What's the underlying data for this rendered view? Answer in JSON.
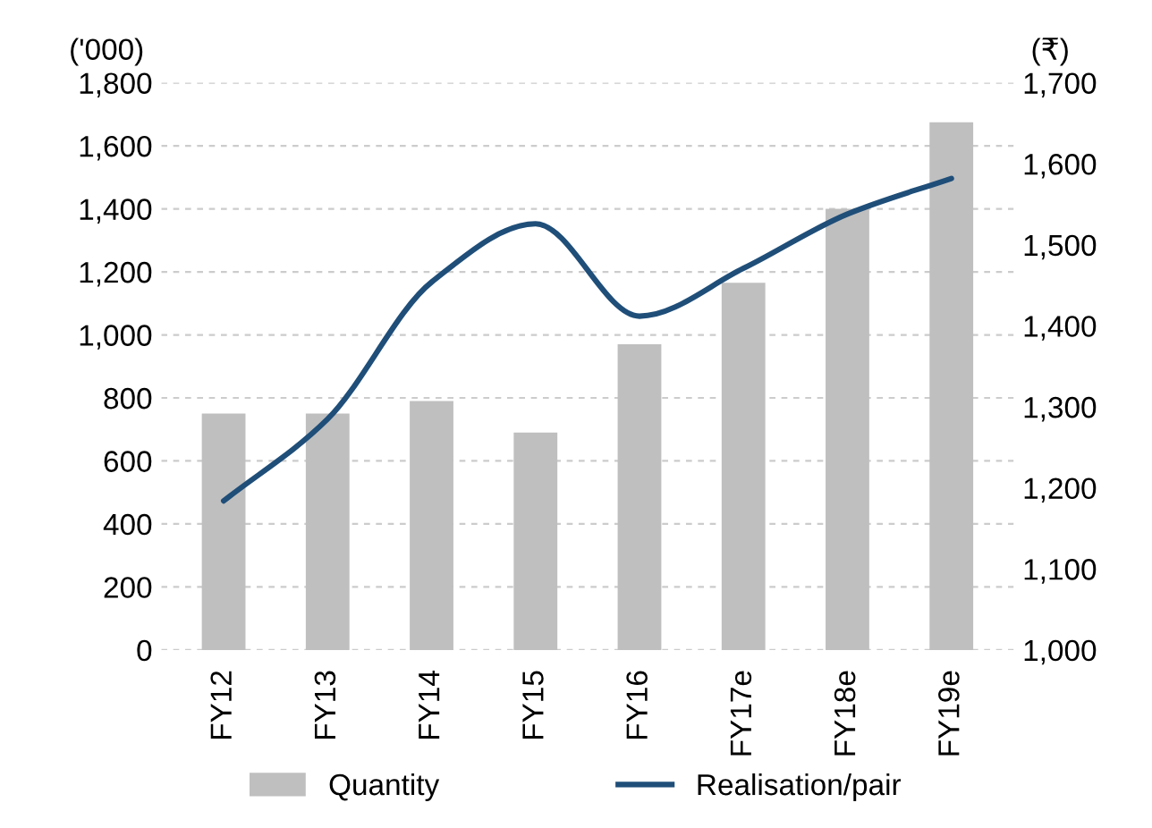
{
  "chart_data": {
    "type": "bar",
    "ylabel": "('000)",
    "y2label": "(₹)",
    "categories": [
      "FY12",
      "FY13",
      "FY14",
      "FY15",
      "FY16",
      "FY17e",
      "FY18e",
      "FY19e"
    ],
    "series": [
      {
        "name": "Quantity",
        "color": "#bfbfbf",
        "values": [
          750,
          750,
          790,
          690,
          970,
          1165,
          1400,
          1675
        ]
      },
      {
        "name": "Realisation/pair",
        "type": "line",
        "axis": "y2",
        "color": "#1f4e79",
        "values": [
          1184,
          1285,
          1454,
          1526,
          1412,
          1471,
          1538,
          1582
        ]
      }
    ],
    "ylim": [
      0,
      1800
    ],
    "yticks": [
      0,
      {
        "value": 200,
        "label": "200"
      },
      {
        "value": 400,
        "label": "400"
      },
      {
        "value": 600,
        "label": "600"
      },
      {
        "value": 800,
        "label": "800"
      },
      {
        "value": 1000,
        "label": "1,000"
      },
      {
        "value": 1200,
        "label": "1,200"
      },
      {
        "value": 1400,
        "label": "1,400"
      },
      {
        "value": 1600,
        "label": "1,600"
      },
      {
        "value": 1800,
        "label": "1,800"
      }
    ],
    "y2lim": [
      1000,
      1700
    ],
    "y2ticks": [
      {
        "value": 1000,
        "label": "1,000"
      },
      {
        "value": 1100,
        "label": "1,100"
      },
      {
        "value": 1200,
        "label": "1,200"
      },
      {
        "value": 1300,
        "label": "1,300"
      },
      {
        "value": 1400,
        "label": "1,400"
      },
      {
        "value": 1500,
        "label": "1,500"
      },
      {
        "value": 1600,
        "label": "1,600"
      },
      {
        "value": 1700,
        "label": "1,700"
      }
    ],
    "grid": "y",
    "legend": "bottom",
    "line_style": "solid",
    "marker": "none"
  }
}
